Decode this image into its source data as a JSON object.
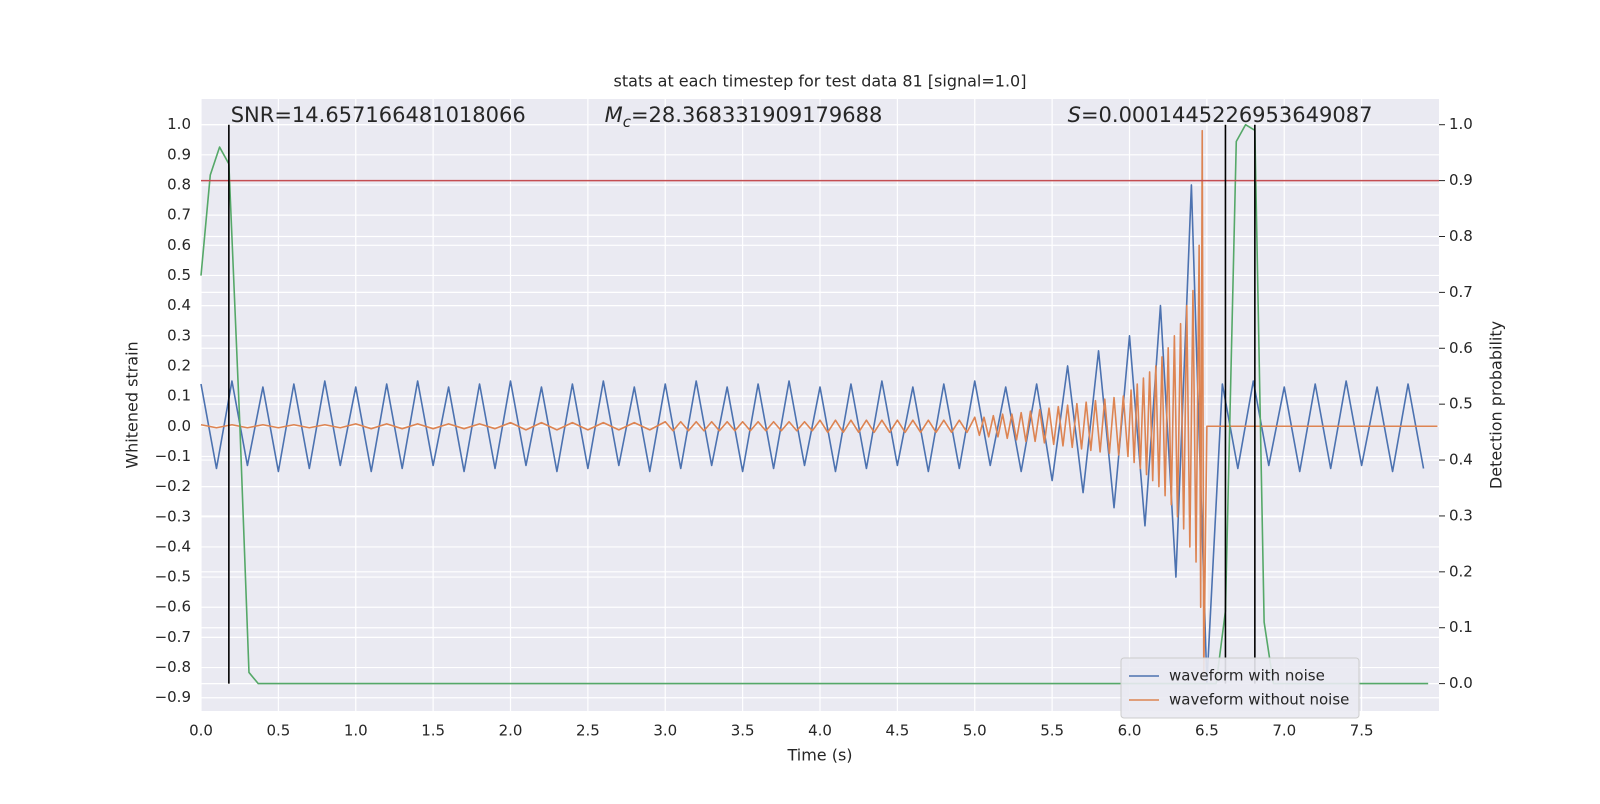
{
  "chart_data": {
    "type": "line",
    "title": "stats at each timestep for test data 81 [signal=1.0]",
    "xlabel": "Time (s)",
    "ylabel": "Whitened strain",
    "y2label": "Detection probability",
    "xlim": [
      0,
      8.0
    ],
    "ylim": [
      -0.944,
      1.085
    ],
    "y2lim": [
      -0.049,
      1.046
    ],
    "xticks": [
      {
        "value": 0,
        "label": "0.0"
      },
      {
        "value": 0.5,
        "label": "0.5"
      },
      {
        "value": 1,
        "label": "1.0"
      },
      {
        "value": 1.5,
        "label": "1.5"
      },
      {
        "value": 2,
        "label": "2.0"
      },
      {
        "value": 2.5,
        "label": "2.5"
      },
      {
        "value": 3,
        "label": "3.0"
      },
      {
        "value": 3.5,
        "label": "3.5"
      },
      {
        "value": 4,
        "label": "4.0"
      },
      {
        "value": 4.5,
        "label": "4.5"
      },
      {
        "value": 5,
        "label": "5.0"
      },
      {
        "value": 5.5,
        "label": "5.5"
      },
      {
        "value": 6,
        "label": "6.0"
      },
      {
        "value": 6.5,
        "label": "6.5"
      },
      {
        "value": 7,
        "label": "7.0"
      },
      {
        "value": 7.5,
        "label": "7.5"
      }
    ],
    "yticks": [
      {
        "value": -0.9,
        "label": "−0.9"
      },
      {
        "value": -0.8,
        "label": "−0.8"
      },
      {
        "value": -0.7,
        "label": "−0.7"
      },
      {
        "value": -0.6,
        "label": "−0.6"
      },
      {
        "value": -0.5,
        "label": "−0.5"
      },
      {
        "value": -0.4,
        "label": "−0.4"
      },
      {
        "value": -0.3,
        "label": "−0.3"
      },
      {
        "value": -0.2,
        "label": "−0.2"
      },
      {
        "value": -0.1,
        "label": "−0.1"
      },
      {
        "value": 0,
        "label": "0.0"
      },
      {
        "value": 0.1,
        "label": "0.1"
      },
      {
        "value": 0.2,
        "label": "0.2"
      },
      {
        "value": 0.3,
        "label": "0.3"
      },
      {
        "value": 0.4,
        "label": "0.4"
      },
      {
        "value": 0.5,
        "label": "0.5"
      },
      {
        "value": 0.6,
        "label": "0.6"
      },
      {
        "value": 0.7,
        "label": "0.7"
      },
      {
        "value": 0.8,
        "label": "0.8"
      },
      {
        "value": 0.9,
        "label": "0.9"
      },
      {
        "value": 1,
        "label": "1.0"
      }
    ],
    "y2ticks": [
      {
        "value": 0,
        "label": "0.0"
      },
      {
        "value": 0.1,
        "label": "0.1"
      },
      {
        "value": 0.2,
        "label": "0.2"
      },
      {
        "value": 0.3,
        "label": "0.3"
      },
      {
        "value": 0.4,
        "label": "0.4"
      },
      {
        "value": 0.5,
        "label": "0.5"
      },
      {
        "value": 0.6,
        "label": "0.6"
      },
      {
        "value": 0.7,
        "label": "0.7"
      },
      {
        "value": 0.8,
        "label": "0.8"
      },
      {
        "value": 0.9,
        "label": "0.9"
      },
      {
        "value": 1,
        "label": "1.0"
      }
    ],
    "grid": true,
    "legend": "lower right",
    "series": [
      {
        "name": "waveform with noise",
        "color": "#4c72b0",
        "x": [
          0,
          0.1,
          0.2,
          0.3,
          0.4,
          0.5,
          0.6,
          0.7,
          0.8,
          0.9,
          1,
          1.1,
          1.2,
          1.3,
          1.4,
          1.5,
          1.6,
          1.7,
          1.8,
          1.9,
          2,
          2.1,
          2.2,
          2.3,
          2.4,
          2.5,
          2.6,
          2.7,
          2.8,
          2.9,
          3,
          3.1,
          3.2,
          3.3,
          3.4,
          3.5,
          3.6,
          3.7,
          3.8,
          3.9,
          4,
          4.1,
          4.2,
          4.3,
          4.4,
          4.5,
          4.6,
          4.7,
          4.8,
          4.9,
          5,
          5.1,
          5.2,
          5.3,
          5.4,
          5.5,
          5.6,
          5.7,
          5.8,
          5.9,
          6,
          6.1,
          6.2,
          6.3,
          6.4,
          6.5,
          6.6,
          6.7,
          6.8,
          6.9,
          7,
          7.1,
          7.2,
          7.3,
          7.4,
          7.5,
          7.6,
          7.7,
          7.8,
          7.9
        ],
        "values": [
          0.14,
          -0.14,
          0.15,
          -0.13,
          0.13,
          -0.15,
          0.14,
          -0.14,
          0.15,
          -0.13,
          0.13,
          -0.15,
          0.14,
          -0.14,
          0.15,
          -0.13,
          0.13,
          -0.15,
          0.14,
          -0.14,
          0.15,
          -0.13,
          0.13,
          -0.15,
          0.14,
          -0.14,
          0.15,
          -0.13,
          0.13,
          -0.15,
          0.14,
          -0.14,
          0.15,
          -0.13,
          0.13,
          -0.15,
          0.14,
          -0.14,
          0.15,
          -0.13,
          0.13,
          -0.15,
          0.14,
          -0.14,
          0.15,
          -0.13,
          0.13,
          -0.15,
          0.14,
          -0.14,
          0.15,
          -0.13,
          0.13,
          -0.15,
          0.14,
          -0.18,
          0.2,
          -0.22,
          0.25,
          -0.27,
          0.3,
          -0.33,
          0.4,
          -0.5,
          0.8,
          -0.85,
          0.14,
          -0.14,
          0.15,
          -0.13,
          0.13,
          -0.15,
          0.14,
          -0.14,
          0.15,
          -0.13,
          0.13,
          -0.15,
          0.14,
          -0.14
        ]
      },
      {
        "name": "waveform without noise",
        "color": "#dd8452",
        "x": [
          0,
          0.1,
          0.2,
          0.3,
          0.4,
          0.5,
          0.6,
          0.7,
          0.8,
          0.9,
          1,
          1.1,
          1.2,
          1.3,
          1.4,
          1.5,
          1.6,
          1.7,
          1.8,
          1.9,
          2,
          2.1,
          2.2,
          2.3,
          2.4,
          2.5,
          2.6,
          2.7,
          2.8,
          2.9,
          3,
          3.05,
          3.1,
          3.15,
          3.2,
          3.25,
          3.3,
          3.35,
          3.4,
          3.45,
          3.5,
          3.55,
          3.6,
          3.65,
          3.7,
          3.75,
          3.8,
          3.85,
          3.9,
          3.95,
          4,
          4.05,
          4.1,
          4.15,
          4.2,
          4.25,
          4.3,
          4.35,
          4.4,
          4.45,
          4.5,
          4.55,
          4.6,
          4.65,
          4.7,
          4.75,
          4.8,
          4.85,
          4.9,
          4.95,
          5,
          5.03,
          5.06,
          5.09,
          5.12,
          5.15,
          5.18,
          5.21,
          5.24,
          5.27,
          5.3,
          5.33,
          5.36,
          5.39,
          5.42,
          5.45,
          5.48,
          5.51,
          5.54,
          5.57,
          5.6,
          5.63,
          5.66,
          5.69,
          5.72,
          5.75,
          5.78,
          5.81,
          5.84,
          5.87,
          5.9,
          5.93,
          5.96,
          5.99,
          6.01,
          6.03,
          6.05,
          6.07,
          6.09,
          6.11,
          6.13,
          6.15,
          6.17,
          6.19,
          6.21,
          6.23,
          6.25,
          6.27,
          6.29,
          6.31,
          6.33,
          6.35,
          6.37,
          6.39,
          6.41,
          6.43,
          6.45,
          6.46,
          6.47,
          6.48,
          6.5,
          7.99
        ],
        "values": [
          0.005,
          -0.005,
          0.005,
          -0.005,
          0.005,
          -0.005,
          0.005,
          -0.005,
          0.005,
          -0.005,
          0.008,
          -0.008,
          0.008,
          -0.008,
          0.008,
          -0.008,
          0.008,
          -0.008,
          0.008,
          -0.008,
          0.012,
          -0.012,
          0.012,
          -0.012,
          0.012,
          -0.012,
          0.012,
          -0.012,
          0.012,
          -0.012,
          0.015,
          -0.015,
          0.015,
          -0.015,
          0.015,
          -0.015,
          0.015,
          -0.015,
          0.015,
          -0.015,
          0.015,
          -0.015,
          0.015,
          -0.015,
          0.015,
          -0.015,
          0.015,
          -0.015,
          0.015,
          -0.015,
          0.02,
          -0.02,
          0.02,
          -0.02,
          0.02,
          -0.02,
          0.02,
          -0.02,
          0.02,
          -0.02,
          0.02,
          -0.02,
          0.02,
          -0.02,
          0.02,
          -0.02,
          0.02,
          -0.02,
          0.02,
          -0.02,
          0.03,
          -0.03,
          0.03,
          -0.035,
          0.035,
          -0.035,
          0.04,
          -0.04,
          0.04,
          -0.045,
          0.045,
          -0.05,
          0.05,
          -0.05,
          0.055,
          -0.055,
          0.06,
          -0.06,
          0.065,
          -0.065,
          0.07,
          -0.07,
          0.075,
          -0.075,
          0.08,
          -0.08,
          0.085,
          -0.085,
          0.09,
          -0.09,
          0.095,
          -0.095,
          0.1,
          -0.1,
          0.12,
          -0.12,
          0.14,
          -0.14,
          0.16,
          -0.16,
          0.18,
          -0.18,
          0.2,
          -0.2,
          0.23,
          -0.23,
          0.26,
          -0.26,
          0.3,
          -0.3,
          0.34,
          -0.34,
          0.4,
          -0.4,
          0.45,
          -0.45,
          0.6,
          -0.6,
          0.98,
          -0.82,
          0,
          0
        ]
      },
      {
        "color": "#55a868",
        "axis": "y2",
        "x": [
          0,
          0.06,
          0.12,
          0.18,
          0.25,
          0.31,
          0.37,
          6.56,
          6.62,
          6.69,
          6.75,
          6.81,
          6.87,
          6.93,
          7.93
        ],
        "values": [
          0.73,
          0.91,
          0.96,
          0.93,
          0.47,
          0.02,
          0,
          0,
          0.13,
          0.97,
          1,
          0.99,
          0.11,
          0,
          0
        ]
      }
    ],
    "hline": {
      "y2": 0.9,
      "color": "#c44e52"
    },
    "vlines": {
      "x": [
        0.18,
        6.62,
        6.81
      ],
      "y2": [
        0,
        1
      ],
      "color": "#000000"
    },
    "annotations": [
      {
        "text": "SNR=14.657166481018066"
      },
      {
        "symbol": "M",
        "subscript": "c",
        "text": "=28.368331909179688"
      },
      {
        "symbol": "S",
        "text": "=0.0001445226953649087"
      }
    ]
  }
}
